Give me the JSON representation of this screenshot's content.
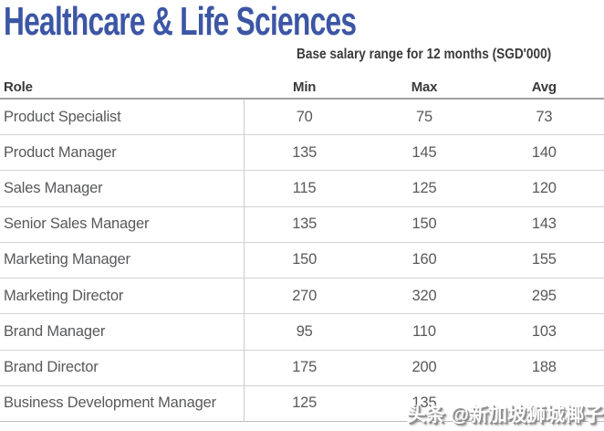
{
  "page": {
    "title": "Healthcare & Life Sciences",
    "subtitle": "Base salary range for 12 months (SGD'000)"
  },
  "table": {
    "headers": {
      "role": "Role",
      "min": "Min",
      "max": "Max",
      "avg": "Avg"
    },
    "rows": [
      {
        "role": "Product Specialist",
        "min": "70",
        "max": "75",
        "avg": "73"
      },
      {
        "role": "Product Manager",
        "min": "135",
        "max": "145",
        "avg": "140"
      },
      {
        "role": "Sales Manager",
        "min": "115",
        "max": "125",
        "avg": "120"
      },
      {
        "role": "Senior Sales Manager",
        "min": "135",
        "max": "150",
        "avg": "143"
      },
      {
        "role": "Marketing Manager",
        "min": "150",
        "max": "160",
        "avg": "155"
      },
      {
        "role": "Marketing Director",
        "min": "270",
        "max": "320",
        "avg": "295"
      },
      {
        "role": "Brand Manager",
        "min": "95",
        "max": "110",
        "avg": "103"
      },
      {
        "role": "Brand Director",
        "min": "175",
        "max": "200",
        "avg": "188"
      },
      {
        "role": "Business Development Manager",
        "min": "125",
        "max": "135",
        "avg": ""
      }
    ]
  },
  "watermark": {
    "text": "头条 @新加坡狮城椰子"
  },
  "colors": {
    "title_blue": "#3c56a5",
    "header_text": "#3a3a3c",
    "body_text": "#58595b",
    "row_border": "#d2d2d4",
    "header_border": "#a2a2a4",
    "watermark_fill": "#ffffff",
    "watermark_shadow": "#8f8f91"
  }
}
